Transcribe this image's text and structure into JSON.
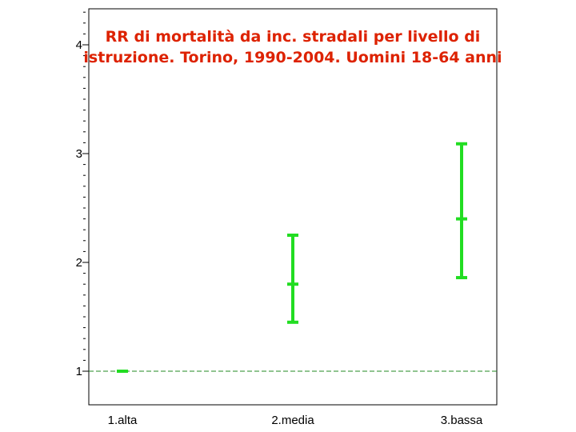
{
  "chart_data": {
    "type": "errorbar",
    "title_lines": [
      "RR di mortalità da inc. stradali per livello di",
      "istruzione. Torino, 1990-2004. Uomini 18-64 anni"
    ],
    "xlabel": "",
    "ylabel": "",
    "categories": [
      "1.alta",
      "2.media",
      "3.bassa"
    ],
    "points": [
      {
        "category": "1.alta",
        "rr": 1.0,
        "lower": 1.0,
        "upper": 1.0
      },
      {
        "category": "2.media",
        "rr": 1.8,
        "lower": 1.45,
        "upper": 2.25
      },
      {
        "category": "3.bassa",
        "rr": 2.4,
        "lower": 1.86,
        "upper": 3.09
      }
    ],
    "yticks": [
      1,
      2,
      3,
      4
    ],
    "ylim": [
      0.6,
      4.35
    ],
    "reference_line": 1,
    "grid": false,
    "legend": "none",
    "colors": {
      "marker": "#22dd22",
      "title": "#dd2200",
      "reference_line": "#228822",
      "axis": "#000000"
    }
  }
}
